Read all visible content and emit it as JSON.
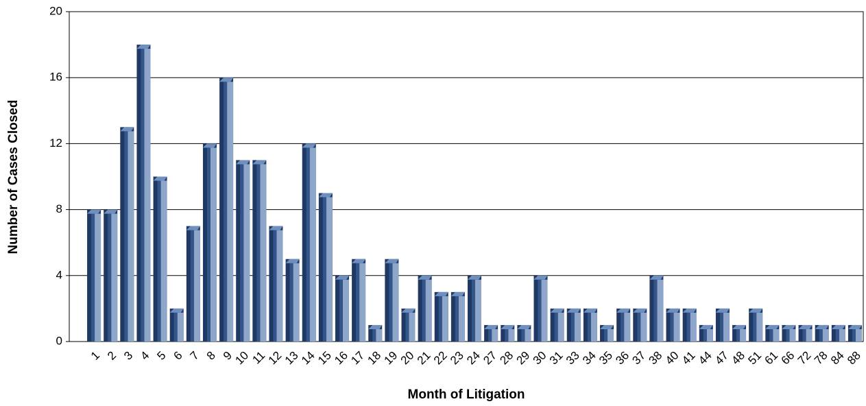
{
  "chart_data": {
    "type": "bar",
    "xlabel": "Month of Litigation",
    "ylabel": "Number of Cases Closed",
    "categories": [
      "1",
      "2",
      "3",
      "4",
      "5",
      "6",
      "7",
      "8",
      "9",
      "10",
      "11",
      "12",
      "13",
      "14",
      "15",
      "16",
      "17",
      "18",
      "19",
      "20",
      "21",
      "22",
      "23",
      "24",
      "27",
      "28",
      "29",
      "30",
      "31",
      "33",
      "34",
      "35",
      "36",
      "37",
      "38",
      "40",
      "41",
      "44",
      "47",
      "48",
      "51",
      "61",
      "66",
      "72",
      "78",
      "84",
      "88"
    ],
    "values": [
      8,
      8,
      13,
      18,
      10,
      2,
      7,
      12,
      16,
      11,
      11,
      7,
      5,
      12,
      9,
      4,
      5,
      1,
      5,
      2,
      4,
      3,
      3,
      4,
      1,
      1,
      1,
      4,
      2,
      2,
      2,
      1,
      2,
      2,
      4,
      2,
      2,
      1,
      2,
      1,
      2,
      1,
      1,
      1,
      1,
      1,
      1
    ],
    "color": "#203864",
    "ylim": [
      0,
      20
    ],
    "yticks": [
      0,
      4,
      8,
      12,
      16,
      20
    ],
    "grid": true
  }
}
